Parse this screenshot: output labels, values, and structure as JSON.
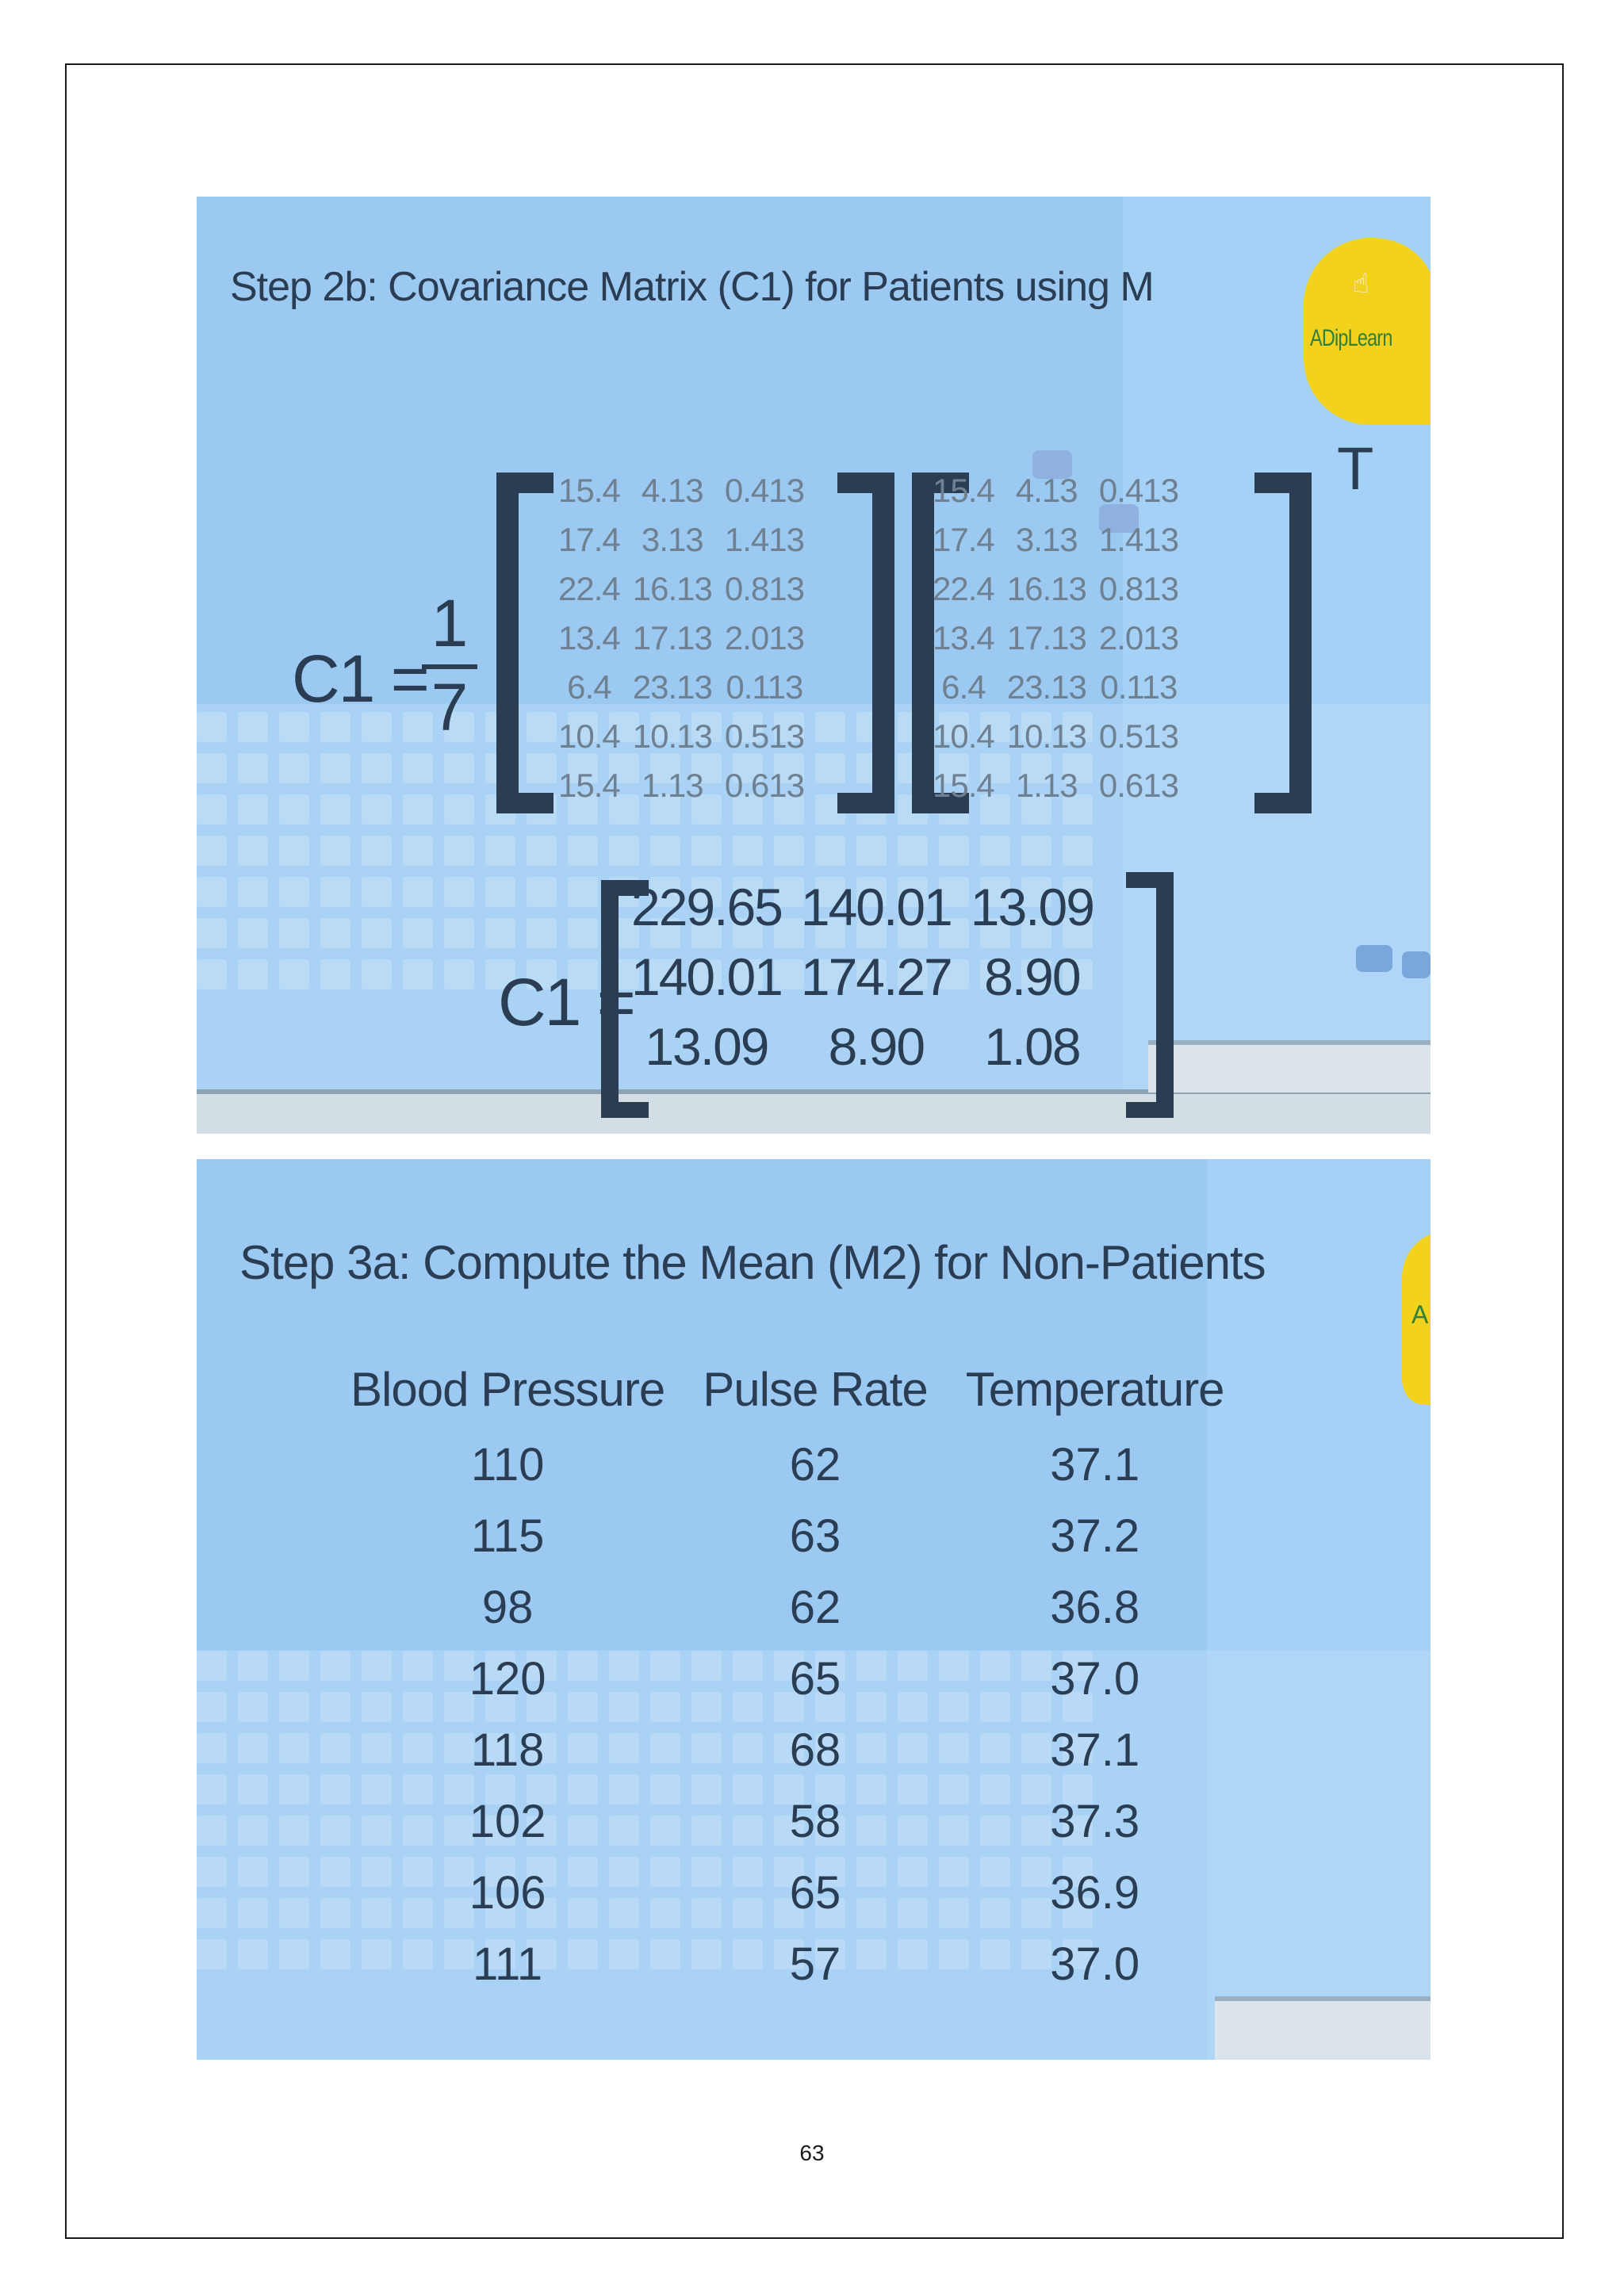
{
  "slide1": {
    "title": "Step 2b: Covariance Matrix (C1) for Patients using M",
    "logo_text": "ADipLearn",
    "c1_label": "C1 =",
    "fraction": {
      "numerator": "1",
      "denominator": "7"
    },
    "transpose_mark": "T",
    "deviation_matrix": [
      [
        "15.4",
        "4.13",
        "0.413"
      ],
      [
        "17.4",
        "3.13",
        "1.413"
      ],
      [
        "22.4",
        "16.13",
        "0.813"
      ],
      [
        "13.4",
        "17.13",
        "2.013"
      ],
      [
        "6.4",
        "23.13",
        "0.113"
      ],
      [
        "10.4",
        "10.13",
        "0.513"
      ],
      [
        "15.4",
        "1.13",
        "0.613"
      ]
    ],
    "result_label": "C1 =",
    "result_matrix": [
      [
        "229.65",
        "140.01",
        "13.09"
      ],
      [
        "140.01",
        "174.27",
        "8.90"
      ],
      [
        "13.09",
        "8.90",
        "1.08"
      ]
    ]
  },
  "slide2": {
    "title": "Step 3a: Compute the Mean (M2) for Non-Patients",
    "logo_text": "A",
    "columns": [
      "Blood Pressure",
      "Pulse Rate",
      "Temperature"
    ],
    "rows": [
      [
        "110",
        "62",
        "37.1"
      ],
      [
        "115",
        "63",
        "37.2"
      ],
      [
        "98",
        "62",
        "36.8"
      ],
      [
        "120",
        "65",
        "37.0"
      ],
      [
        "118",
        "68",
        "37.1"
      ],
      [
        "102",
        "58",
        "37.3"
      ],
      [
        "106",
        "65",
        "36.9"
      ],
      [
        "111",
        "57",
        "37.0"
      ]
    ]
  },
  "page_number": "63",
  "colors": {
    "slide_bg": "#9cc9f2",
    "text_dark": "#2b3d52",
    "text_muted": "#6f8090",
    "logo_yellow": "#f3d21d",
    "logo_green": "#2f7f3b"
  }
}
